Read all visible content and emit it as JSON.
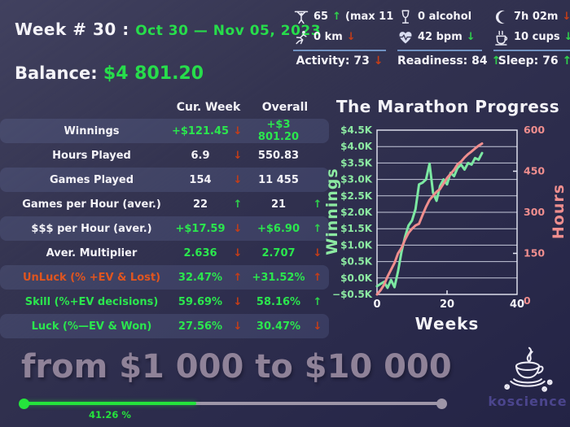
{
  "header": {
    "week_label": "Week # 30 :",
    "date_range": "Oct 30 — Nov 05, 2023",
    "balance_label": "Balance:",
    "balance_value": "$4 801.20"
  },
  "health": {
    "columns": [
      {
        "name": "activity",
        "rows": [
          {
            "icon": "pullup-icon",
            "value": "65",
            "arrow": "↑",
            "arrow_color": "green",
            "extra": "(max 11"
          },
          {
            "icon": "runner-icon",
            "value": "0 km",
            "arrow": "↓",
            "arrow_color": "red",
            "extra": ""
          }
        ],
        "summary": "Activity: 73",
        "summary_arrow": "↓",
        "summary_arrow_color": "red"
      },
      {
        "name": "readiness",
        "rows": [
          {
            "icon": "wine-icon",
            "value": "0 alcohol",
            "arrow": "",
            "arrow_color": "",
            "extra": ""
          },
          {
            "icon": "heart-icon",
            "value": "42 bpm",
            "arrow": "↓",
            "arrow_color": "green",
            "extra": ""
          }
        ],
        "summary": "Readiness: 84",
        "summary_arrow": "↑",
        "summary_arrow_color": "green"
      },
      {
        "name": "sleep",
        "rows": [
          {
            "icon": "moon-icon",
            "value": "7h 02m",
            "arrow": "↓",
            "arrow_color": "red",
            "extra": ""
          },
          {
            "icon": "coffee-icon",
            "value": "10 cups",
            "arrow": "↓",
            "arrow_color": "green",
            "extra": ""
          }
        ],
        "summary": "Sleep: 76",
        "summary_arrow": "↑",
        "summary_arrow_color": "green"
      }
    ]
  },
  "table": {
    "col1_header": "Cur. Week",
    "col2_header": "Overall",
    "rows": [
      {
        "label": "Winnings",
        "label_color": "white",
        "cur": "+$121.45",
        "cur_color": "green",
        "cur_arrow": "↓",
        "cur_arrow_color": "red",
        "overall": "+$3 801.20",
        "overall_color": "green",
        "overall_arrow": "",
        "overall_arrow_color": ""
      },
      {
        "label": "Hours Played",
        "label_color": "white",
        "cur": "6.9",
        "cur_color": "white",
        "cur_arrow": "↓",
        "cur_arrow_color": "red",
        "overall": "550.83",
        "overall_color": "white",
        "overall_arrow": "",
        "overall_arrow_color": ""
      },
      {
        "label": "Games Played",
        "label_color": "white",
        "cur": "154",
        "cur_color": "white",
        "cur_arrow": "↓",
        "cur_arrow_color": "red",
        "overall": "11 455",
        "overall_color": "white",
        "overall_arrow": "",
        "overall_arrow_color": ""
      },
      {
        "label": "Games per Hour (aver.)",
        "label_color": "white",
        "cur": "22",
        "cur_color": "white",
        "cur_arrow": "↑",
        "cur_arrow_color": "green",
        "overall": "21",
        "overall_color": "white",
        "overall_arrow": "↑",
        "overall_arrow_color": "green"
      },
      {
        "label": "$$$ per Hour (aver.)",
        "label_color": "white",
        "cur": "+$17.59",
        "cur_color": "green",
        "cur_arrow": "↓",
        "cur_arrow_color": "red",
        "overall": "+$6.90",
        "overall_color": "green",
        "overall_arrow": "↑",
        "overall_arrow_color": "green"
      },
      {
        "label": "Aver. Multiplier",
        "label_color": "white",
        "cur": "2.636",
        "cur_color": "green",
        "cur_arrow": "↓",
        "cur_arrow_color": "red",
        "overall": "2.707",
        "overall_color": "green",
        "overall_arrow": "↓",
        "overall_arrow_color": "red"
      },
      {
        "label": "UnLuck (% +EV & Lost)",
        "label_color": "orange",
        "cur": "32.47%",
        "cur_color": "green",
        "cur_arrow": "↑",
        "cur_arrow_color": "red",
        "overall": "+31.52%",
        "overall_color": "green",
        "overall_arrow": "↑",
        "overall_arrow_color": "red"
      },
      {
        "label": "Skill (%+EV decisions)",
        "label_color": "green",
        "cur": "59.69%",
        "cur_color": "green",
        "cur_arrow": "↓",
        "cur_arrow_color": "red",
        "overall": "58.16%",
        "overall_color": "green",
        "overall_arrow": "↑",
        "overall_arrow_color": "green"
      },
      {
        "label": "Luck (%—EV & Won)",
        "label_color": "green",
        "cur": "27.56%",
        "cur_color": "green",
        "cur_arrow": "↓",
        "cur_arrow_color": "red",
        "overall": "30.47%",
        "overall_color": "green",
        "overall_arrow": "↓",
        "overall_arrow_color": "red"
      }
    ]
  },
  "chart_data": {
    "type": "line",
    "title": "The Marathon Progress",
    "xlabel": "Weeks",
    "ylabel_left": "Winnings",
    "ylabel_right": "Hours",
    "xlim": [
      0,
      40
    ],
    "ylim_left": [
      -500,
      4500
    ],
    "ylim_right": [
      0,
      600
    ],
    "x_ticks": [
      0,
      20,
      40
    ],
    "y_ticks_left": [
      "$4.5K",
      "$4.0K",
      "$3.5K",
      "$3.0K",
      "$2.5K",
      "$2.0K",
      "$1.5K",
      "$1.0K",
      "$0.5K",
      "$0.0K",
      "−$0.5K"
    ],
    "y_ticks_right": [
      "600",
      "450",
      "300",
      "150",
      "0"
    ],
    "grid": true,
    "legend": false,
    "series": [
      {
        "name": "Winnings",
        "axis": "left",
        "color": "#7ce8a2",
        "x": [
          0,
          1,
          2,
          3,
          4,
          5,
          6,
          7,
          8,
          9,
          10,
          11,
          12,
          13,
          14,
          15,
          16,
          17,
          18,
          19,
          20,
          21,
          22,
          23,
          24,
          25,
          26,
          27,
          28,
          29,
          30
        ],
        "values": [
          -250,
          -180,
          -120,
          -300,
          -60,
          -280,
          200,
          800,
          1250,
          1600,
          1750,
          2100,
          2850,
          2900,
          3000,
          3480,
          2600,
          2350,
          2800,
          3000,
          2850,
          3200,
          3100,
          3350,
          3450,
          3300,
          3500,
          3450,
          3650,
          3600,
          3801
        ]
      },
      {
        "name": "Hours",
        "axis": "right",
        "color": "#ef8e8e",
        "x": [
          0,
          1,
          2,
          3,
          4,
          5,
          6,
          7,
          8,
          9,
          10,
          11,
          12,
          13,
          14,
          15,
          16,
          17,
          18,
          19,
          20,
          21,
          22,
          23,
          24,
          25,
          26,
          27,
          28,
          29,
          30
        ],
        "values": [
          0,
          15,
          35,
          65,
          90,
          115,
          150,
          170,
          200,
          225,
          240,
          252,
          258,
          290,
          320,
          345,
          360,
          375,
          385,
          405,
          425,
          440,
          455,
          475,
          485,
          500,
          512,
          522,
          533,
          543,
          551
        ]
      }
    ]
  },
  "footer": {
    "goal_text": "from $1 000 to $10 000",
    "progress_percent": 41.26,
    "progress_label": "41.26 %"
  },
  "logo": {
    "text": "koscience"
  },
  "colors": {
    "background_top": "#41415f",
    "background_bottom": "#232345",
    "accent_green": "#27dd4b",
    "arrow_red": "#c63d17",
    "unluck_orange": "#e0551f",
    "chart_green": "#7ce8a2",
    "chart_salmon": "#ef8e8e",
    "divider_blue": "#7ba3d6",
    "goal_mauve": "#8f8298",
    "progress_green": "#25e43c",
    "progress_gray": "#9e96a8",
    "logo_purple": "#4f4894"
  }
}
